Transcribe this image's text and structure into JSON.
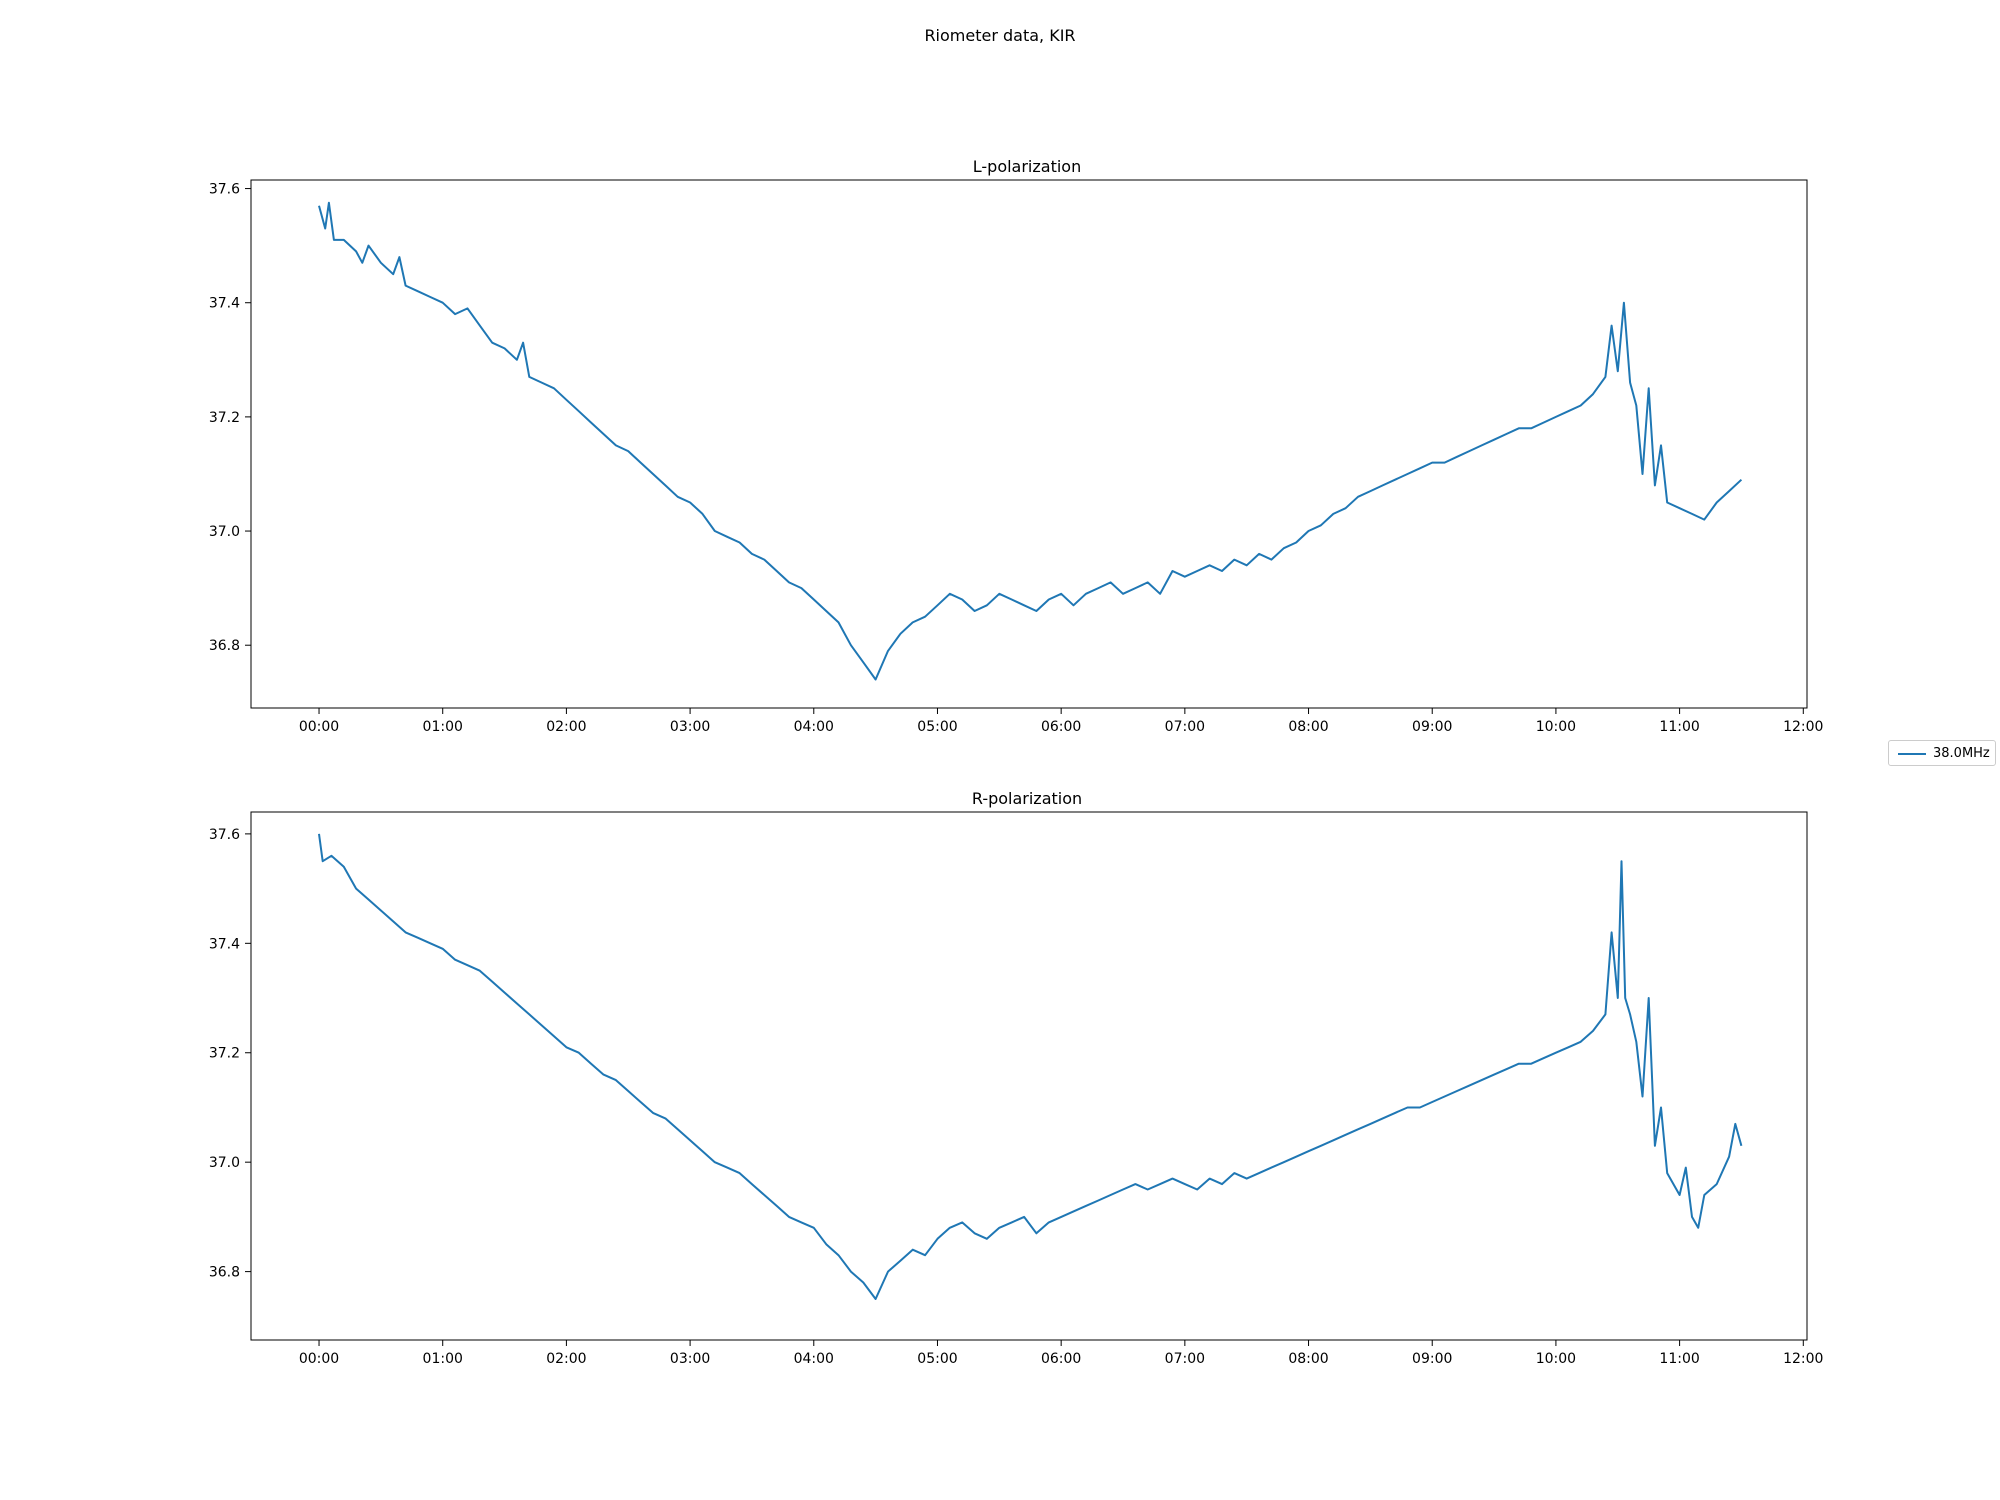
{
  "figure": {
    "title": "Riometer data, KIR",
    "legend": {
      "label": "38.0MHz",
      "color": "#1f77b4",
      "placement": "right-center"
    }
  },
  "chart_data": [
    {
      "type": "line",
      "title": "L-polarization",
      "xlabel": "",
      "ylabel": "",
      "x_unit": "hours",
      "xlim": [
        -0.55,
        12.03
      ],
      "ylim": [
        36.69,
        37.615
      ],
      "x_ticks": [
        0,
        1,
        2,
        3,
        4,
        5,
        6,
        7,
        8,
        9,
        10,
        11,
        12
      ],
      "x_tick_labels": [
        "00:00",
        "01:00",
        "02:00",
        "03:00",
        "04:00",
        "05:00",
        "06:00",
        "07:00",
        "08:00",
        "09:00",
        "10:00",
        "11:00",
        "12:00"
      ],
      "y_ticks": [
        36.8,
        37.0,
        37.2,
        37.4,
        37.6
      ],
      "y_tick_labels": [
        "36.8",
        "37.0",
        "37.2",
        "37.4",
        "37.6"
      ],
      "grid": false,
      "series": [
        {
          "name": "38.0MHz",
          "color": "#1f77b4",
          "points": [
            [
              0.0,
              37.57
            ],
            [
              0.05,
              37.53
            ],
            [
              0.08,
              37.575
            ],
            [
              0.12,
              37.51
            ],
            [
              0.2,
              37.51
            ],
            [
              0.3,
              37.49
            ],
            [
              0.35,
              37.47
            ],
            [
              0.4,
              37.5
            ],
            [
              0.5,
              37.47
            ],
            [
              0.6,
              37.45
            ],
            [
              0.65,
              37.48
            ],
            [
              0.7,
              37.43
            ],
            [
              0.8,
              37.42
            ],
            [
              0.9,
              37.41
            ],
            [
              1.0,
              37.4
            ],
            [
              1.1,
              37.38
            ],
            [
              1.2,
              37.39
            ],
            [
              1.3,
              37.36
            ],
            [
              1.4,
              37.33
            ],
            [
              1.5,
              37.32
            ],
            [
              1.6,
              37.3
            ],
            [
              1.65,
              37.33
            ],
            [
              1.7,
              37.27
            ],
            [
              1.8,
              37.26
            ],
            [
              1.9,
              37.25
            ],
            [
              2.0,
              37.23
            ],
            [
              2.1,
              37.21
            ],
            [
              2.2,
              37.19
            ],
            [
              2.3,
              37.17
            ],
            [
              2.4,
              37.15
            ],
            [
              2.5,
              37.14
            ],
            [
              2.6,
              37.12
            ],
            [
              2.7,
              37.1
            ],
            [
              2.8,
              37.08
            ],
            [
              2.9,
              37.06
            ],
            [
              3.0,
              37.05
            ],
            [
              3.1,
              37.03
            ],
            [
              3.2,
              37.0
            ],
            [
              3.3,
              36.99
            ],
            [
              3.4,
              36.98
            ],
            [
              3.5,
              36.96
            ],
            [
              3.6,
              36.95
            ],
            [
              3.7,
              36.93
            ],
            [
              3.8,
              36.91
            ],
            [
              3.9,
              36.9
            ],
            [
              4.0,
              36.88
            ],
            [
              4.1,
              36.86
            ],
            [
              4.2,
              36.84
            ],
            [
              4.3,
              36.8
            ],
            [
              4.4,
              36.77
            ],
            [
              4.5,
              36.74
            ],
            [
              4.6,
              36.79
            ],
            [
              4.7,
              36.82
            ],
            [
              4.8,
              36.84
            ],
            [
              4.9,
              36.85
            ],
            [
              5.0,
              36.87
            ],
            [
              5.1,
              36.89
            ],
            [
              5.2,
              36.88
            ],
            [
              5.3,
              36.86
            ],
            [
              5.4,
              36.87
            ],
            [
              5.5,
              36.89
            ],
            [
              5.6,
              36.88
            ],
            [
              5.7,
              36.87
            ],
            [
              5.8,
              36.86
            ],
            [
              5.9,
              36.88
            ],
            [
              6.0,
              36.89
            ],
            [
              6.1,
              36.87
            ],
            [
              6.2,
              36.89
            ],
            [
              6.3,
              36.9
            ],
            [
              6.4,
              36.91
            ],
            [
              6.5,
              36.89
            ],
            [
              6.6,
              36.9
            ],
            [
              6.7,
              36.91
            ],
            [
              6.8,
              36.89
            ],
            [
              6.9,
              36.93
            ],
            [
              7.0,
              36.92
            ],
            [
              7.1,
              36.93
            ],
            [
              7.2,
              36.94
            ],
            [
              7.3,
              36.93
            ],
            [
              7.4,
              36.95
            ],
            [
              7.5,
              36.94
            ],
            [
              7.6,
              36.96
            ],
            [
              7.7,
              36.95
            ],
            [
              7.8,
              36.97
            ],
            [
              7.9,
              36.98
            ],
            [
              8.0,
              37.0
            ],
            [
              8.1,
              37.01
            ],
            [
              8.2,
              37.03
            ],
            [
              8.3,
              37.04
            ],
            [
              8.4,
              37.06
            ],
            [
              8.5,
              37.07
            ],
            [
              8.6,
              37.08
            ],
            [
              8.7,
              37.09
            ],
            [
              8.8,
              37.1
            ],
            [
              8.9,
              37.11
            ],
            [
              9.0,
              37.12
            ],
            [
              9.1,
              37.12
            ],
            [
              9.2,
              37.13
            ],
            [
              9.3,
              37.14
            ],
            [
              9.4,
              37.15
            ],
            [
              9.5,
              37.16
            ],
            [
              9.6,
              37.17
            ],
            [
              9.7,
              37.18
            ],
            [
              9.8,
              37.18
            ],
            [
              9.9,
              37.19
            ],
            [
              10.0,
              37.2
            ],
            [
              10.1,
              37.21
            ],
            [
              10.2,
              37.22
            ],
            [
              10.3,
              37.24
            ],
            [
              10.4,
              37.27
            ],
            [
              10.45,
              37.36
            ],
            [
              10.5,
              37.28
            ],
            [
              10.55,
              37.4
            ],
            [
              10.6,
              37.26
            ],
            [
              10.65,
              37.22
            ],
            [
              10.7,
              37.1
            ],
            [
              10.75,
              37.25
            ],
            [
              10.8,
              37.08
            ],
            [
              10.85,
              37.15
            ],
            [
              10.9,
              37.05
            ],
            [
              11.0,
              37.04
            ],
            [
              11.1,
              37.03
            ],
            [
              11.2,
              37.02
            ],
            [
              11.3,
              37.05
            ],
            [
              11.4,
              37.07
            ],
            [
              11.5,
              37.09
            ]
          ]
        }
      ]
    },
    {
      "type": "line",
      "title": "R-polarization",
      "xlabel": "",
      "ylabel": "",
      "x_unit": "hours",
      "xlim": [
        -0.55,
        12.03
      ],
      "ylim": [
        36.675,
        37.64
      ],
      "x_ticks": [
        0,
        1,
        2,
        3,
        4,
        5,
        6,
        7,
        8,
        9,
        10,
        11,
        12
      ],
      "x_tick_labels": [
        "00:00",
        "01:00",
        "02:00",
        "03:00",
        "04:00",
        "05:00",
        "06:00",
        "07:00",
        "08:00",
        "09:00",
        "10:00",
        "11:00",
        "12:00"
      ],
      "y_ticks": [
        36.8,
        37.0,
        37.2,
        37.4,
        37.6
      ],
      "y_tick_labels": [
        "36.8",
        "37.0",
        "37.2",
        "37.4",
        "37.6"
      ],
      "grid": false,
      "series": [
        {
          "name": "38.0MHz",
          "color": "#1f77b4",
          "points": [
            [
              0.0,
              37.6
            ],
            [
              0.03,
              37.55
            ],
            [
              0.1,
              37.56
            ],
            [
              0.2,
              37.54
            ],
            [
              0.3,
              37.5
            ],
            [
              0.4,
              37.48
            ],
            [
              0.5,
              37.46
            ],
            [
              0.6,
              37.44
            ],
            [
              0.7,
              37.42
            ],
            [
              0.8,
              37.41
            ],
            [
              0.9,
              37.4
            ],
            [
              1.0,
              37.39
            ],
            [
              1.1,
              37.37
            ],
            [
              1.2,
              37.36
            ],
            [
              1.3,
              37.35
            ],
            [
              1.4,
              37.33
            ],
            [
              1.5,
              37.31
            ],
            [
              1.6,
              37.29
            ],
            [
              1.7,
              37.27
            ],
            [
              1.8,
              37.25
            ],
            [
              1.9,
              37.23
            ],
            [
              2.0,
              37.21
            ],
            [
              2.1,
              37.2
            ],
            [
              2.2,
              37.18
            ],
            [
              2.3,
              37.16
            ],
            [
              2.4,
              37.15
            ],
            [
              2.5,
              37.13
            ],
            [
              2.6,
              37.11
            ],
            [
              2.7,
              37.09
            ],
            [
              2.8,
              37.08
            ],
            [
              2.9,
              37.06
            ],
            [
              3.0,
              37.04
            ],
            [
              3.1,
              37.02
            ],
            [
              3.2,
              37.0
            ],
            [
              3.3,
              36.99
            ],
            [
              3.4,
              36.98
            ],
            [
              3.5,
              36.96
            ],
            [
              3.6,
              36.94
            ],
            [
              3.7,
              36.92
            ],
            [
              3.8,
              36.9
            ],
            [
              3.9,
              36.89
            ],
            [
              4.0,
              36.88
            ],
            [
              4.1,
              36.85
            ],
            [
              4.2,
              36.83
            ],
            [
              4.3,
              36.8
            ],
            [
              4.4,
              36.78
            ],
            [
              4.5,
              36.75
            ],
            [
              4.6,
              36.8
            ],
            [
              4.7,
              36.82
            ],
            [
              4.8,
              36.84
            ],
            [
              4.9,
              36.83
            ],
            [
              5.0,
              36.86
            ],
            [
              5.1,
              36.88
            ],
            [
              5.2,
              36.89
            ],
            [
              5.3,
              36.87
            ],
            [
              5.4,
              36.86
            ],
            [
              5.5,
              36.88
            ],
            [
              5.6,
              36.89
            ],
            [
              5.7,
              36.9
            ],
            [
              5.8,
              36.87
            ],
            [
              5.9,
              36.89
            ],
            [
              6.0,
              36.9
            ],
            [
              6.1,
              36.91
            ],
            [
              6.2,
              36.92
            ],
            [
              6.3,
              36.93
            ],
            [
              6.4,
              36.94
            ],
            [
              6.5,
              36.95
            ],
            [
              6.6,
              36.96
            ],
            [
              6.7,
              36.95
            ],
            [
              6.8,
              36.96
            ],
            [
              6.9,
              36.97
            ],
            [
              7.0,
              36.96
            ],
            [
              7.1,
              36.95
            ],
            [
              7.2,
              36.97
            ],
            [
              7.3,
              36.96
            ],
            [
              7.4,
              36.98
            ],
            [
              7.5,
              36.97
            ],
            [
              7.6,
              36.98
            ],
            [
              7.7,
              36.99
            ],
            [
              7.8,
              37.0
            ],
            [
              7.9,
              37.01
            ],
            [
              8.0,
              37.02
            ],
            [
              8.1,
              37.03
            ],
            [
              8.2,
              37.04
            ],
            [
              8.3,
              37.05
            ],
            [
              8.4,
              37.06
            ],
            [
              8.5,
              37.07
            ],
            [
              8.6,
              37.08
            ],
            [
              8.7,
              37.09
            ],
            [
              8.8,
              37.1
            ],
            [
              8.9,
              37.1
            ],
            [
              9.0,
              37.11
            ],
            [
              9.1,
              37.12
            ],
            [
              9.2,
              37.13
            ],
            [
              9.3,
              37.14
            ],
            [
              9.4,
              37.15
            ],
            [
              9.5,
              37.16
            ],
            [
              9.6,
              37.17
            ],
            [
              9.7,
              37.18
            ],
            [
              9.8,
              37.18
            ],
            [
              9.9,
              37.19
            ],
            [
              10.0,
              37.2
            ],
            [
              10.1,
              37.21
            ],
            [
              10.2,
              37.22
            ],
            [
              10.3,
              37.24
            ],
            [
              10.4,
              37.27
            ],
            [
              10.45,
              37.42
            ],
            [
              10.5,
              37.3
            ],
            [
              10.53,
              37.55
            ],
            [
              10.56,
              37.3
            ],
            [
              10.6,
              37.27
            ],
            [
              10.65,
              37.22
            ],
            [
              10.7,
              37.12
            ],
            [
              10.75,
              37.3
            ],
            [
              10.8,
              37.03
            ],
            [
              10.85,
              37.1
            ],
            [
              10.9,
              36.98
            ],
            [
              11.0,
              36.94
            ],
            [
              11.05,
              36.99
            ],
            [
              11.1,
              36.9
            ],
            [
              11.15,
              36.88
            ],
            [
              11.2,
              36.94
            ],
            [
              11.3,
              36.96
            ],
            [
              11.4,
              37.01
            ],
            [
              11.45,
              37.07
            ],
            [
              11.5,
              37.03
            ]
          ]
        }
      ]
    }
  ]
}
